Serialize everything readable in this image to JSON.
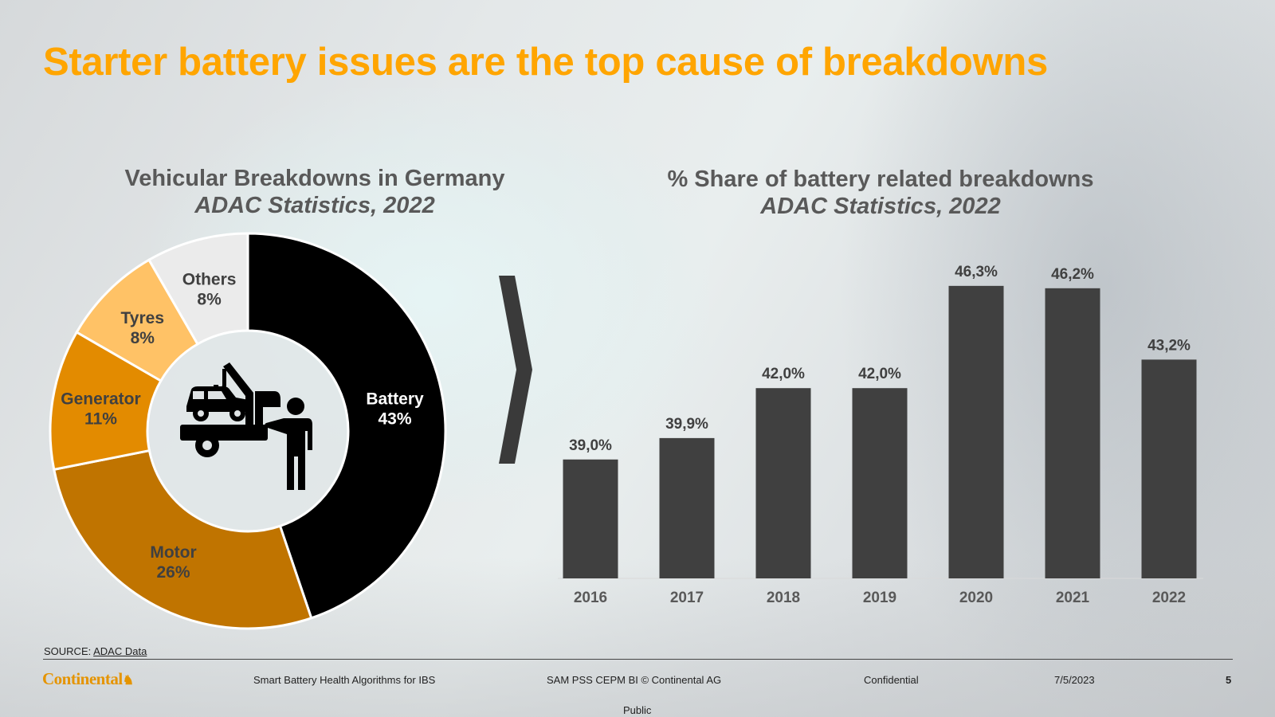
{
  "slide": {
    "title": "Starter battery issues are the top cause of breakdowns",
    "source_label": "SOURCE: ",
    "source_link": "ADAC Data",
    "footer": {
      "logo": "Continental",
      "presentation": "Smart Battery Health Algorithms for IBS",
      "department": "SAM PSS CEPM BI © Continental AG",
      "classification": "Confidential",
      "date": "7/5/2023",
      "page": "5",
      "public_label": "Public"
    },
    "center_icon": "tow-truck-mechanic-icon",
    "divider_icon": "chevron-right-icon"
  },
  "chart_data": [
    {
      "type": "pie",
      "variant": "donut",
      "title": "Vehicular Breakdowns in Germany",
      "subtitle": "ADAC Statistics, 2022",
      "slices": [
        {
          "label": "Battery",
          "value": 43,
          "value_label": "43%",
          "color": "#000000",
          "text_color": "#ffffff"
        },
        {
          "label": "Motor",
          "value": 26,
          "value_label": "26%",
          "color": "#c07400",
          "text_color": "#404040"
        },
        {
          "label": "Generator",
          "value": 11,
          "value_label": "11%",
          "color": "#e38b00",
          "text_color": "#404040"
        },
        {
          "label": "Tyres",
          "value": 8,
          "value_label": "8%",
          "color": "#ffc266",
          "text_color": "#404040"
        },
        {
          "label": "Others",
          "value": 8,
          "value_label": "8%",
          "color": "#ebebeb",
          "text_color": "#404040"
        }
      ],
      "start": "12 o'clock",
      "direction": "clockwise"
    },
    {
      "type": "bar",
      "title": "% Share of battery related breakdowns",
      "subtitle": "ADAC Statistics, 2022",
      "categories": [
        "2016",
        "2017",
        "2018",
        "2019",
        "2020",
        "2021",
        "2022"
      ],
      "values": [
        39.0,
        39.9,
        42.0,
        42.0,
        46.3,
        46.2,
        43.2
      ],
      "value_labels": [
        "39,0%",
        "39,9%",
        "42,0%",
        "42,0%",
        "46,3%",
        "46,2%",
        "43,2%"
      ],
      "xlabel": "",
      "ylabel": "",
      "ylim": [
        34,
        48
      ],
      "y_axis_visible": false,
      "grid": false,
      "bar_color": "#404040"
    }
  ]
}
